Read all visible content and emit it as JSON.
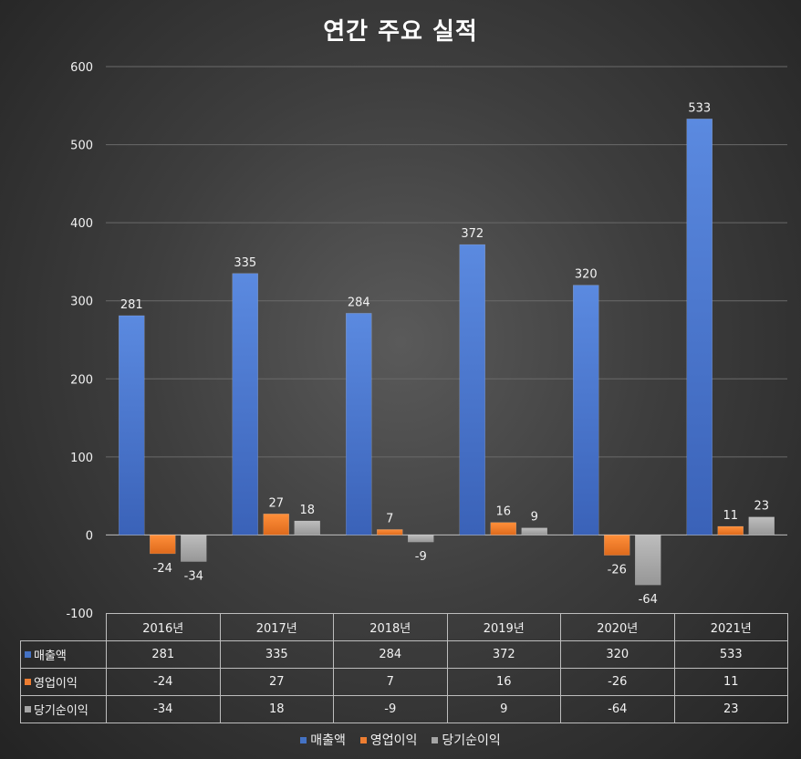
{
  "chart_data": {
    "type": "bar",
    "title": "연간 주요 실적",
    "categories": [
      "2016년",
      "2017년",
      "2018년",
      "2019년",
      "2020년",
      "2021년"
    ],
    "series": [
      {
        "name": "매출액",
        "color": "#4472c4",
        "values": [
          281,
          335,
          284,
          372,
          320,
          533
        ]
      },
      {
        "name": "영업이익",
        "color": "#ed7d31",
        "values": [
          -24,
          27,
          7,
          16,
          -26,
          11
        ]
      },
      {
        "name": "당기순이익",
        "color": "#a5a5a5",
        "values": [
          -34,
          18,
          -9,
          9,
          -64,
          23
        ]
      }
    ],
    "ylim": [
      -100,
      600
    ],
    "yticks": [
      -100,
      0,
      100,
      200,
      300,
      400,
      500,
      600
    ],
    "grid": true,
    "legend": "bottom",
    "data_table": true
  }
}
